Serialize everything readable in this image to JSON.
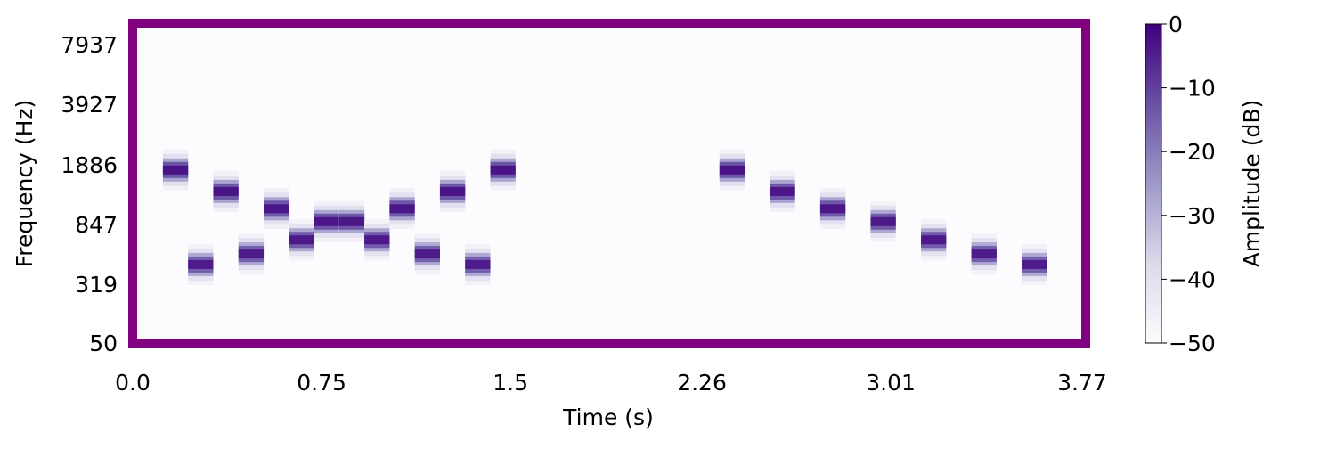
{
  "chart_data": {
    "type": "heatmap",
    "subtype": "spectrogram",
    "title": "",
    "xlabel": "Time (s)",
    "ylabel": "Frequency (Hz)",
    "xlim": [
      0.0,
      3.77
    ],
    "x_ticks": [
      "0.0",
      "0.75",
      "1.5",
      "2.26",
      "3.01",
      "3.77"
    ],
    "x_tick_values": [
      0.0,
      0.75,
      1.5,
      2.26,
      3.01,
      3.77
    ],
    "y_ticks": [
      "50",
      "319",
      "847",
      "1886",
      "3927",
      "7937"
    ],
    "y_tick_values": [
      50,
      319,
      847,
      1886,
      3927,
      7937
    ],
    "grid": false,
    "colorbar": {
      "label": "Amplitude (dB)",
      "range": [
        -50,
        0
      ],
      "ticks": [
        "0",
        "−10",
        "−20",
        "−30",
        "−40",
        "−50"
      ],
      "tick_values": [
        0,
        -10,
        -20,
        -30,
        -40,
        -50
      ],
      "colormap": "Purples"
    },
    "colors": {
      "frame": "#800080",
      "peak": "#3f007d",
      "background": "#fcfbfd"
    },
    "notes": [
      {
        "start": 0.12,
        "end": 0.22,
        "freq_hz": 1760,
        "db": 0
      },
      {
        "start": 0.22,
        "end": 0.32,
        "freq_hz": 440,
        "db": -3
      },
      {
        "start": 0.32,
        "end": 0.42,
        "freq_hz": 1319,
        "db": 0
      },
      {
        "start": 0.42,
        "end": 0.52,
        "freq_hz": 523,
        "db": -3
      },
      {
        "start": 0.52,
        "end": 0.62,
        "freq_hz": 1047,
        "db": -1
      },
      {
        "start": 0.62,
        "end": 0.72,
        "freq_hz": 659,
        "db": -2
      },
      {
        "start": 0.72,
        "end": 0.82,
        "freq_hz": 880,
        "db": -1
      },
      {
        "start": 0.82,
        "end": 0.92,
        "freq_hz": 880,
        "db": -1
      },
      {
        "start": 0.92,
        "end": 1.02,
        "freq_hz": 659,
        "db": -2
      },
      {
        "start": 1.02,
        "end": 1.12,
        "freq_hz": 1047,
        "db": -1
      },
      {
        "start": 1.12,
        "end": 1.22,
        "freq_hz": 523,
        "db": -3
      },
      {
        "start": 1.22,
        "end": 1.32,
        "freq_hz": 1319,
        "db": 0
      },
      {
        "start": 1.32,
        "end": 1.42,
        "freq_hz": 440,
        "db": -3
      },
      {
        "start": 1.42,
        "end": 1.52,
        "freq_hz": 1760,
        "db": 0
      },
      {
        "start": 2.33,
        "end": 2.43,
        "freq_hz": 1760,
        "db": 0
      },
      {
        "start": 2.53,
        "end": 2.63,
        "freq_hz": 1319,
        "db": -1
      },
      {
        "start": 2.73,
        "end": 2.83,
        "freq_hz": 1047,
        "db": -1
      },
      {
        "start": 2.93,
        "end": 3.03,
        "freq_hz": 880,
        "db": -2
      },
      {
        "start": 3.13,
        "end": 3.23,
        "freq_hz": 659,
        "db": -2
      },
      {
        "start": 3.33,
        "end": 3.43,
        "freq_hz": 523,
        "db": -3
      },
      {
        "start": 3.53,
        "end": 3.63,
        "freq_hz": 440,
        "db": -3
      }
    ]
  }
}
